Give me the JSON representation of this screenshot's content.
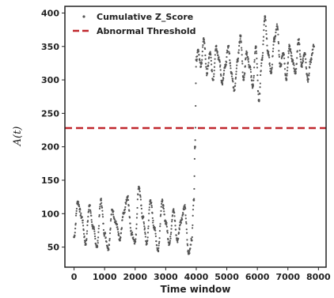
{
  "chart_data": {
    "type": "scatter",
    "xlabel": "Time window",
    "ylabel": "A(t)",
    "xlim": [
      -300,
      8250
    ],
    "ylim": [
      20,
      410
    ],
    "x_ticks": [
      "0",
      "1000",
      "2000",
      "3000",
      "4000",
      "5000",
      "6000",
      "7000",
      "8000"
    ],
    "y_ticks": [
      "50",
      "100",
      "150",
      "200",
      "250",
      "300",
      "350",
      "400"
    ],
    "legend_position": "upper-left",
    "grid": false,
    "series": [
      {
        "name": "Cumulative Z_Score",
        "color": "#555555",
        "x": [
          0,
          120,
          250,
          380,
          500,
          620,
          750,
          880,
          1000,
          1120,
          1250,
          1380,
          1500,
          1620,
          1750,
          1880,
          2000,
          2120,
          2250,
          2380,
          2500,
          2620,
          2750,
          2880,
          3000,
          3120,
          3250,
          3380,
          3500,
          3620,
          3750,
          3850,
          3920,
          3960,
          4000,
          4060,
          4150,
          4250,
          4350,
          4450,
          4550,
          4650,
          4750,
          4850,
          4950,
          5050,
          5150,
          5250,
          5350,
          5450,
          5550,
          5650,
          5750,
          5850,
          5950,
          6050,
          6150,
          6250,
          6350,
          6450,
          6550,
          6650,
          6750,
          6850,
          6950,
          7050,
          7150,
          7250,
          7350,
          7450,
          7550,
          7650,
          7750,
          7850
        ],
        "y": [
          65,
          118,
          95,
          55,
          112,
          80,
          50,
          120,
          70,
          48,
          105,
          85,
          60,
          100,
          125,
          70,
          58,
          140,
          95,
          55,
          120,
          80,
          45,
          118,
          88,
          55,
          105,
          60,
          90,
          110,
          40,
          60,
          120,
          200,
          330,
          345,
          320,
          360,
          310,
          340,
          300,
          350,
          330,
          295,
          320,
          350,
          310,
          285,
          330,
          365,
          300,
          340,
          320,
          290,
          350,
          270,
          330,
          395,
          340,
          310,
          360,
          380,
          320,
          340,
          300,
          350,
          330,
          310,
          360,
          320,
          340,
          300,
          330,
          350
        ]
      }
    ],
    "threshold": {
      "name": "Abnormal Threshold",
      "value": 228,
      "color": "#c0272d"
    }
  }
}
